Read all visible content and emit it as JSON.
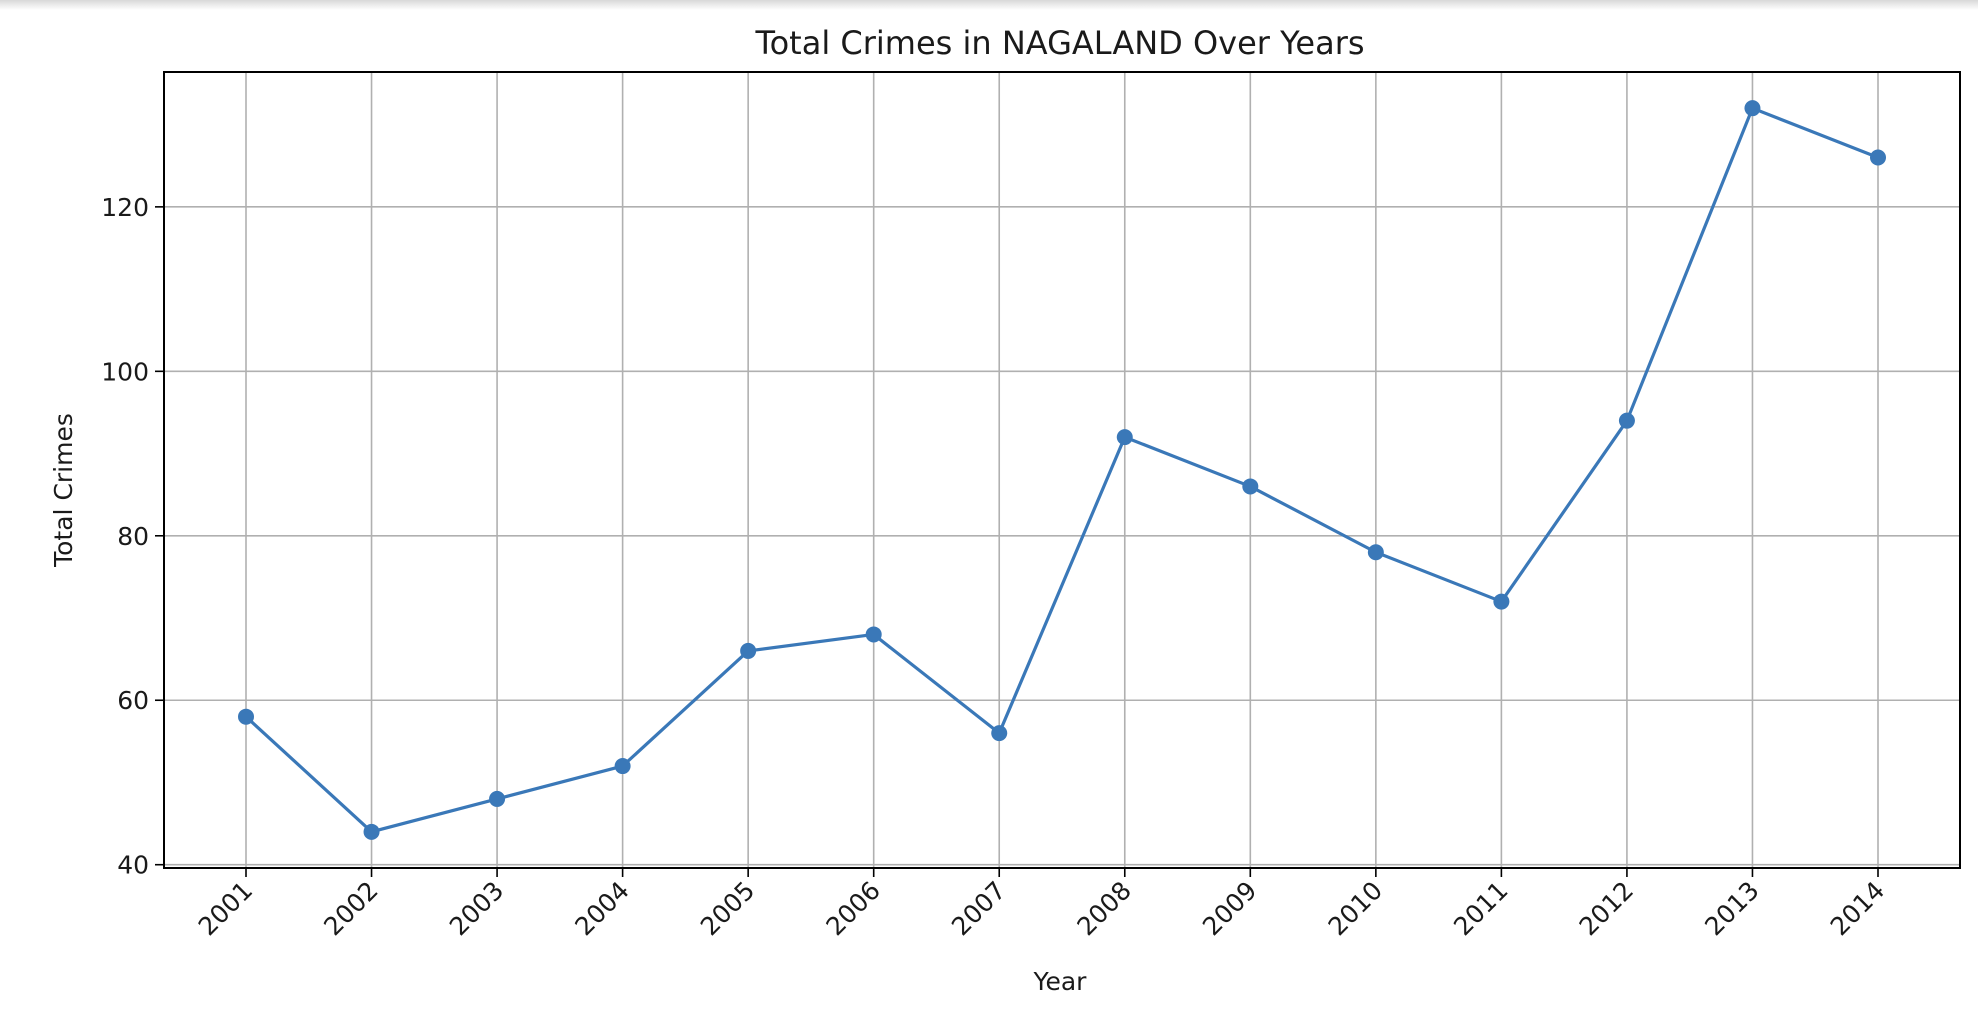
{
  "chart_data": {
    "type": "line",
    "title": "Total Crimes in NAGALAND Over Years",
    "xlabel": "Year",
    "ylabel": "Total Crimes",
    "categories": [
      "2001",
      "2002",
      "2003",
      "2004",
      "2005",
      "2006",
      "2007",
      "2008",
      "2009",
      "2010",
      "2011",
      "2012",
      "2013",
      "2014"
    ],
    "series": [
      {
        "values": [
          58,
          44,
          48,
          52,
          66,
          68,
          56,
          92,
          86,
          78,
          72,
          94,
          132,
          126
        ],
        "color": "#3a78b8",
        "marker": "circle"
      }
    ],
    "ylim": [
      39.6,
      136.4
    ],
    "yticks": [
      40,
      60,
      80,
      100,
      120
    ],
    "grid": true,
    "xtick_rotation": -45
  }
}
